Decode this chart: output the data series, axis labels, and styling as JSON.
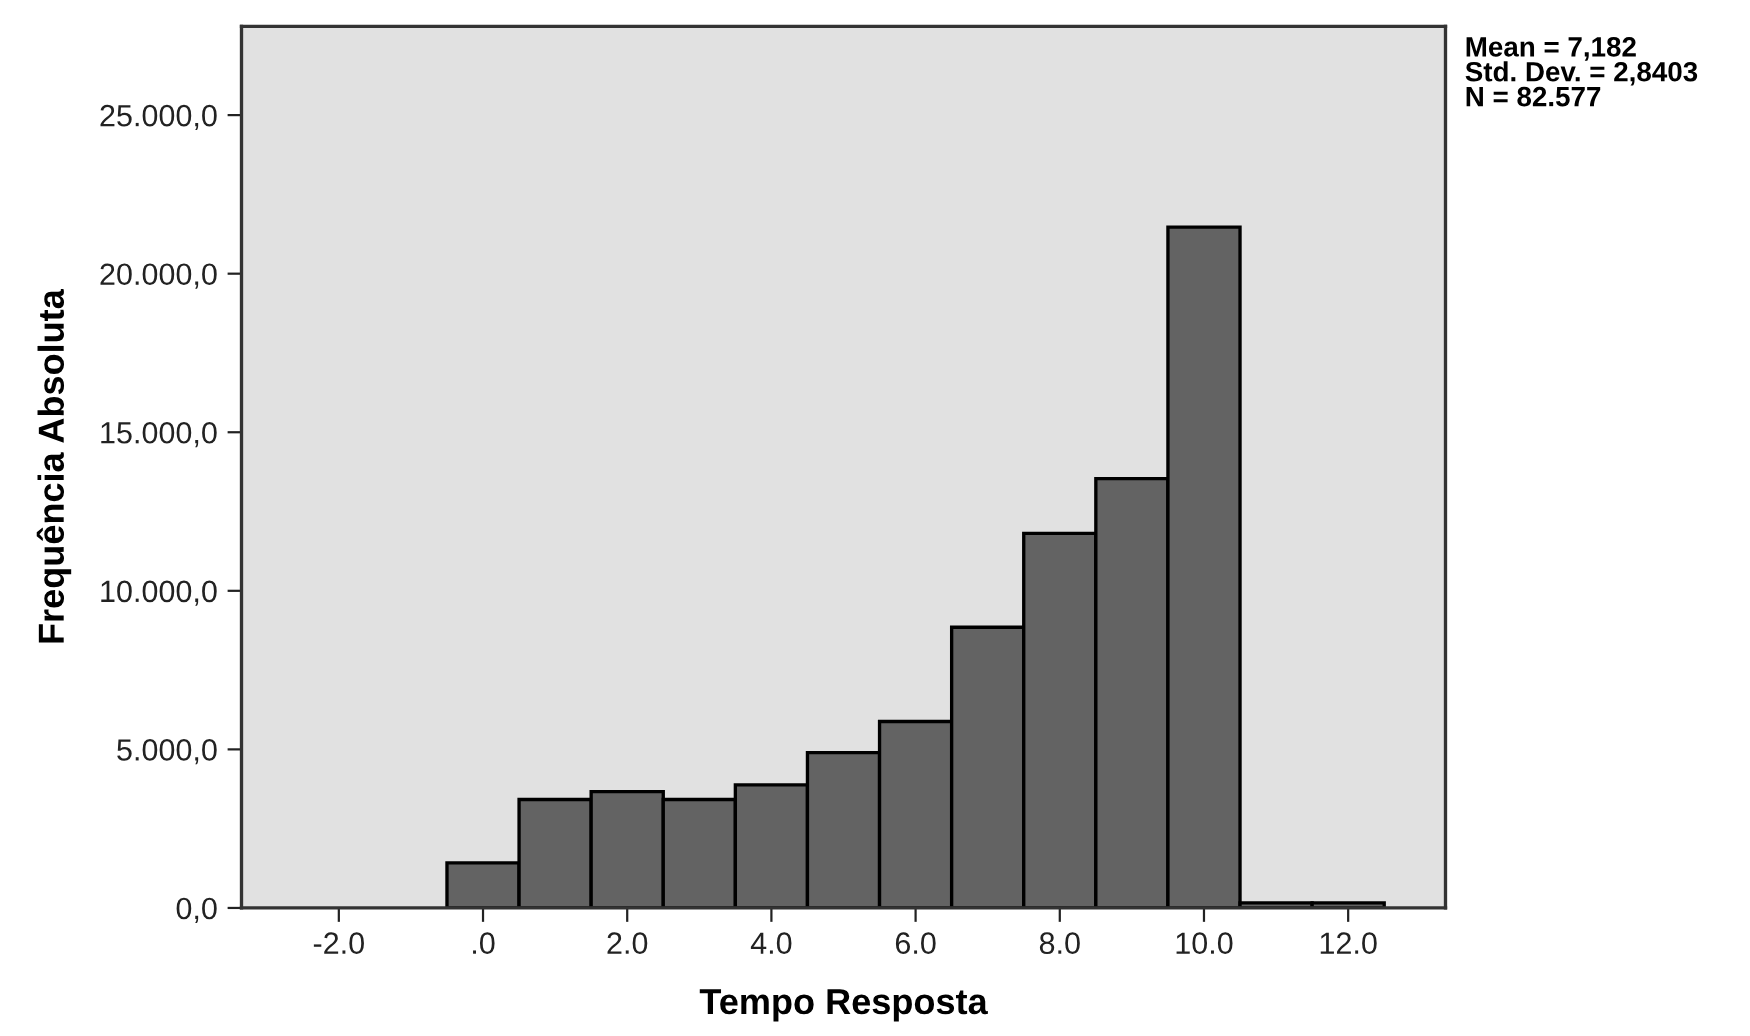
{
  "chart_data": {
    "type": "histogram",
    "xlabel": "Tempo Resposta",
    "ylabel": "Frequência Absoluta",
    "bins": [
      -0.5,
      0.5,
      1.5,
      2.5,
      3.5,
      4.5,
      5.5,
      6.5,
      7.5,
      8.5,
      9.5,
      10.5,
      11.5,
      12.5
    ],
    "values": [
      1420,
      3420,
      3670,
      3420,
      3880,
      4900,
      5880,
      8850,
      11810,
      13540,
      21470,
      160,
      160
    ],
    "color": "#636363",
    "xlim": [
      -3.35,
      13.35
    ],
    "xticks": [
      {
        "value": -2,
        "label": "-2.0"
      },
      {
        "value": 0,
        "label": ".0"
      },
      {
        "value": 2,
        "label": "2.0"
      },
      {
        "value": 4,
        "label": "4.0"
      },
      {
        "value": 6,
        "label": "6.0"
      },
      {
        "value": 8,
        "label": "8.0"
      },
      {
        "value": 10,
        "label": "10.0"
      },
      {
        "value": 12,
        "label": "12.0"
      }
    ],
    "ylim": [
      0,
      27800
    ],
    "yticks": [
      {
        "value": 0,
        "label": "0,0"
      },
      {
        "value": 5000,
        "label": "5.000,0"
      },
      {
        "value": 10000,
        "label": "10.000,0"
      },
      {
        "value": 15000,
        "label": "15.000,0"
      },
      {
        "value": 20000,
        "label": "20.000,0"
      },
      {
        "value": 25000,
        "label": "25.000,0"
      }
    ],
    "grid": false,
    "annotations": [
      "Mean = 7,182\nStd. Dev. = 2,8403\nN = 82.577"
    ]
  }
}
